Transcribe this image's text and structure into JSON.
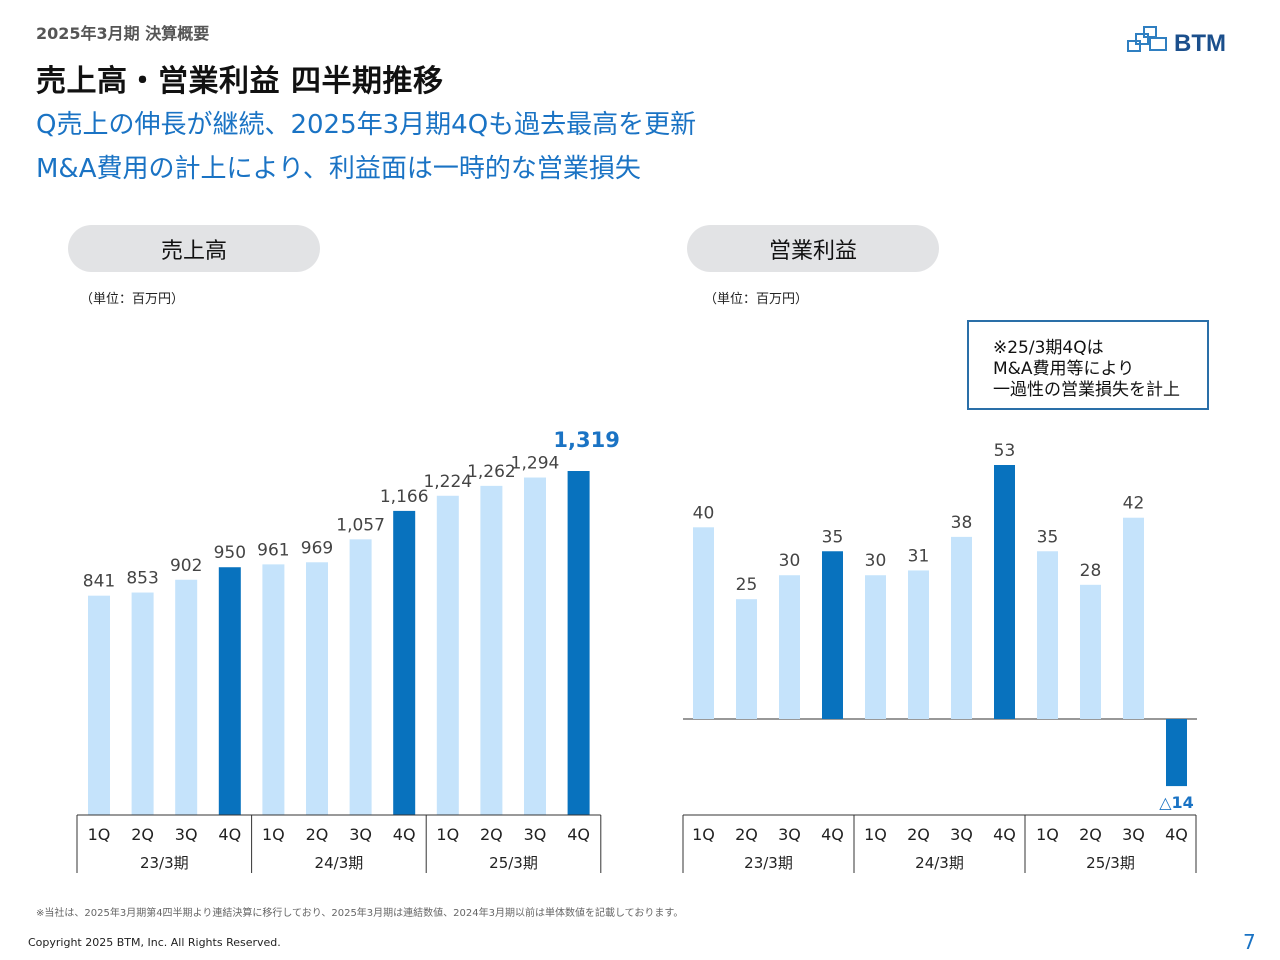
{
  "header": {
    "kicker": "2025年3月期 決算概要",
    "title": "売上高・営業利益 四半期推移",
    "subtitle_line1": "Q売上の伸長が継続、2025年3月期4Qも過去最高を更新",
    "subtitle_line2": "M&A費用の計上により、利益面は一時的な営業損失"
  },
  "logo": {
    "text": "BTM",
    "icon": "btm-logo-icon"
  },
  "colors": {
    "bar_light": "#c5e3fb",
    "bar_dark": "#0872be",
    "accent_text": "#1a73c4",
    "axis": "#777777"
  },
  "chart_data": [
    {
      "type": "bar",
      "title": "売上高",
      "unit": "（単位：百万円）",
      "quarters": [
        "1Q",
        "2Q",
        "3Q",
        "4Q",
        "1Q",
        "2Q",
        "3Q",
        "4Q",
        "1Q",
        "2Q",
        "3Q",
        "4Q"
      ],
      "fiscal_years": [
        "23/3期",
        "24/3期",
        "25/3期"
      ],
      "values": [
        841,
        853,
        902,
        950,
        961,
        969,
        1057,
        1166,
        1224,
        1262,
        1294,
        1319
      ],
      "labels": [
        "841",
        "853",
        "902",
        "950",
        "961",
        "969",
        "1,057",
        "1,166",
        "1,224",
        "1,262",
        "1,294",
        "1,319"
      ],
      "highlight": [
        false,
        false,
        false,
        true,
        false,
        false,
        false,
        true,
        false,
        false,
        false,
        true
      ],
      "ylim": [
        0,
        1319
      ]
    },
    {
      "type": "bar",
      "title": "営業利益",
      "unit": "（単位：百万円）",
      "quarters": [
        "1Q",
        "2Q",
        "3Q",
        "4Q",
        "1Q",
        "2Q",
        "3Q",
        "4Q",
        "1Q",
        "2Q",
        "3Q",
        "4Q"
      ],
      "fiscal_years": [
        "23/3期",
        "24/3期",
        "25/3期"
      ],
      "values": [
        40,
        25,
        30,
        35,
        30,
        31,
        38,
        53,
        35,
        28,
        42,
        -14
      ],
      "labels": [
        "40",
        "25",
        "30",
        "35",
        "30",
        "31",
        "38",
        "53",
        "35",
        "28",
        "42",
        "△14"
      ],
      "highlight": [
        false,
        false,
        false,
        true,
        false,
        false,
        false,
        true,
        false,
        false,
        false,
        true
      ],
      "ylim": [
        -14,
        53
      ],
      "annotation": [
        "※25/3期4Qは",
        "M&A費用等により",
        "一過性の営業損失を計上"
      ]
    }
  ],
  "footer": {
    "footnote": "※当社は、2025年3月期第4四半期より連結決算に移行しており、2025年3月期は連結数値、2024年3月期以前は単体数値を記載しております。",
    "copyright": "Copyright 2025 BTM, Inc. All Rights Reserved.",
    "page_number": "7"
  }
}
